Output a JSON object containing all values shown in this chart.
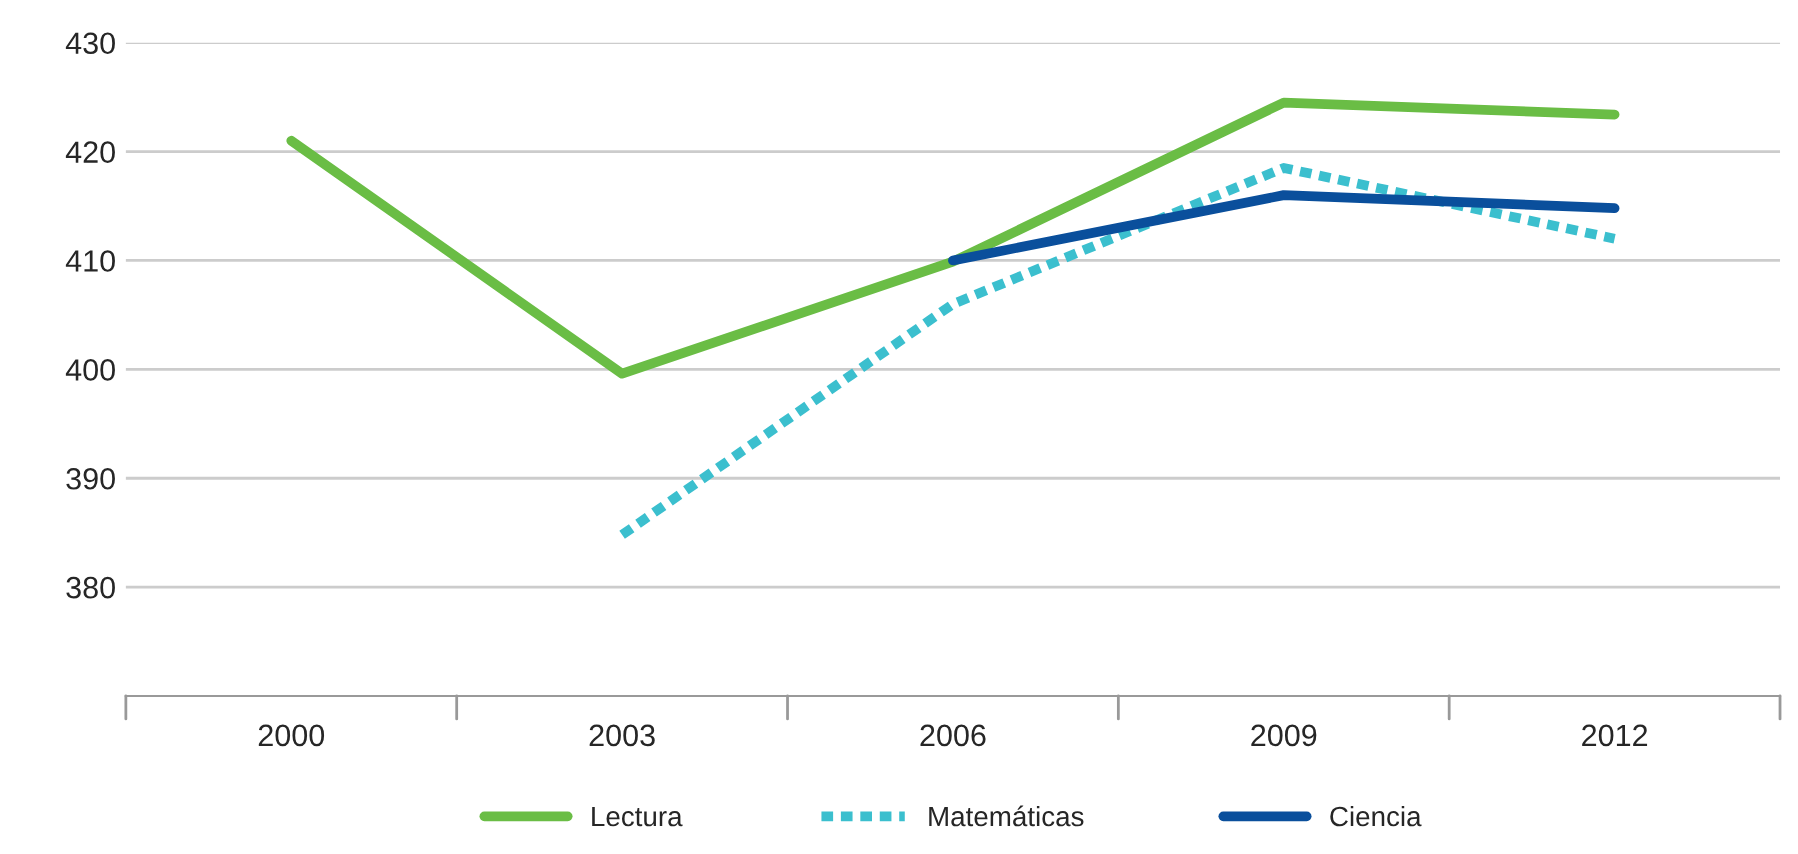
{
  "chart_data": {
    "type": "line",
    "categories": [
      "2000",
      "2003",
      "2006",
      "2009",
      "2012"
    ],
    "series": [
      {
        "name": "Lectura",
        "color": "#6abd45",
        "values": [
          421,
          399.6,
          409.9,
          424.5,
          423.4
        ],
        "line_style": "solid"
      },
      {
        "name": "Matemáticas",
        "color": "#3bbfce",
        "values": [
          null,
          384.8,
          406,
          418.5,
          412
        ],
        "line_style": "dotted"
      },
      {
        "name": "Ciencia",
        "color": "#0a4f9c",
        "values": [
          null,
          null,
          410,
          416,
          414.8
        ],
        "line_style": "solid"
      }
    ],
    "ylim": [
      370,
      430
    ],
    "yticks": [
      380,
      390,
      400,
      410,
      420,
      430
    ],
    "grid": "y",
    "legend": "bottom"
  }
}
